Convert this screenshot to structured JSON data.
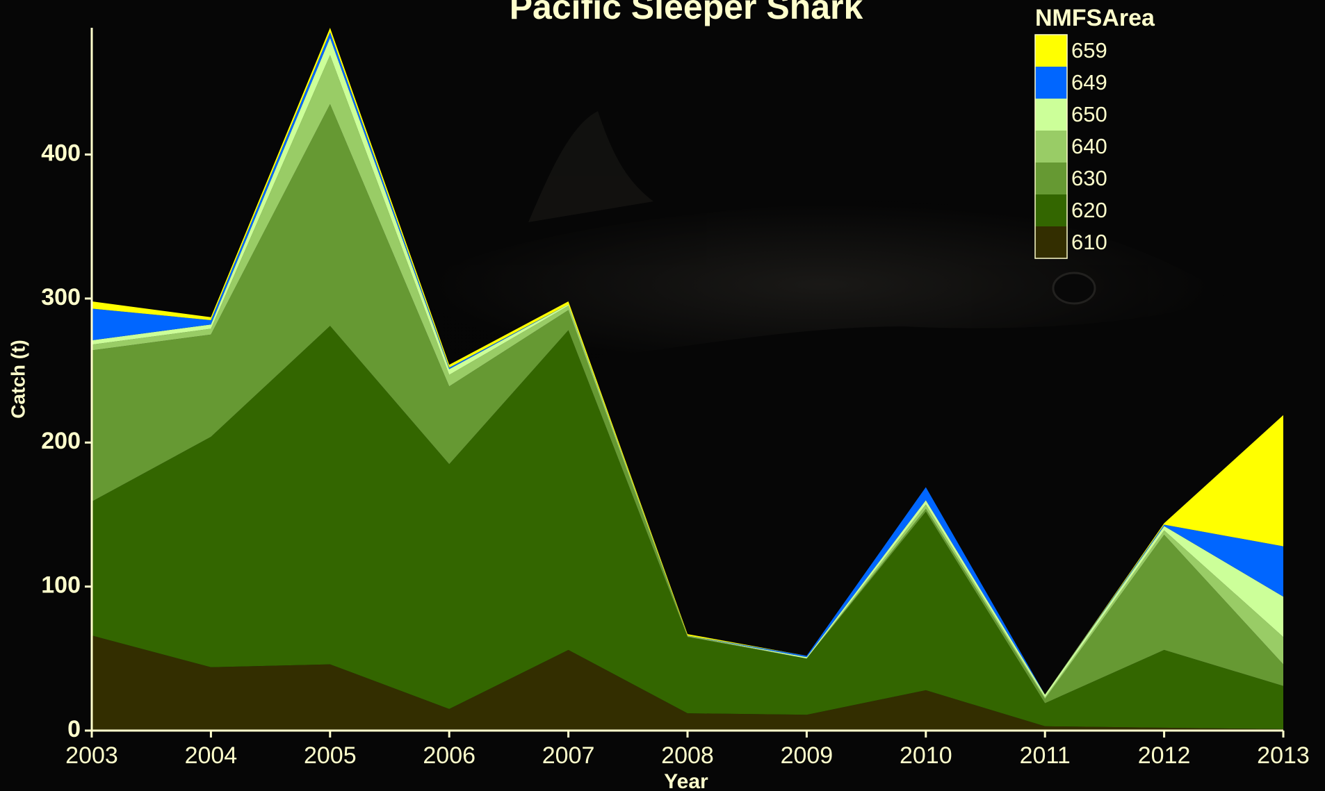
{
  "chart_data": {
    "type": "area",
    "title": "Pacific Sleeper Shark",
    "x_label": "Year",
    "y_label": "Catch (t)",
    "legend_title": "NMFSArea",
    "x": [
      2003,
      2004,
      2005,
      2006,
      2007,
      2008,
      2009,
      2010,
      2011,
      2012,
      2013
    ],
    "xlim": [
      2003,
      2013
    ],
    "xticks": [
      2003,
      2004,
      2005,
      2006,
      2007,
      2008,
      2009,
      2010,
      2011,
      2012,
      2013
    ],
    "ylim": [
      0,
      488
    ],
    "yticks": [
      0,
      100,
      200,
      300,
      400
    ],
    "stacked": true,
    "series": [
      {
        "name": "610",
        "color": "#332e00",
        "values": [
          66,
          44,
          46,
          15,
          56,
          12,
          11,
          28,
          3,
          2,
          1
        ]
      },
      {
        "name": "620",
        "color": "#336600",
        "values": [
          93,
          160,
          235,
          170,
          222,
          53,
          39,
          124,
          16,
          54,
          30
        ]
      },
      {
        "name": "630",
        "color": "#669933",
        "values": [
          105,
          71,
          154,
          54,
          14,
          0.5,
          0,
          2,
          3,
          80,
          15
        ]
      },
      {
        "name": "640",
        "color": "#99cc66",
        "values": [
          4,
          4,
          34,
          8,
          3,
          0.5,
          0,
          3,
          1,
          3,
          19
        ]
      },
      {
        "name": "650",
        "color": "#ccff99",
        "values": [
          3,
          3,
          12,
          4,
          1,
          0,
          1,
          3,
          2,
          3,
          28
        ]
      },
      {
        "name": "649",
        "color": "#0066ff",
        "values": [
          22,
          3,
          4,
          1,
          0,
          0,
          1,
          9,
          0,
          1,
          35
        ]
      },
      {
        "name": "659",
        "color": "#ffff00",
        "values": [
          5,
          2,
          3,
          2,
          2,
          1,
          0,
          0,
          0,
          1,
          91
        ]
      }
    ]
  }
}
